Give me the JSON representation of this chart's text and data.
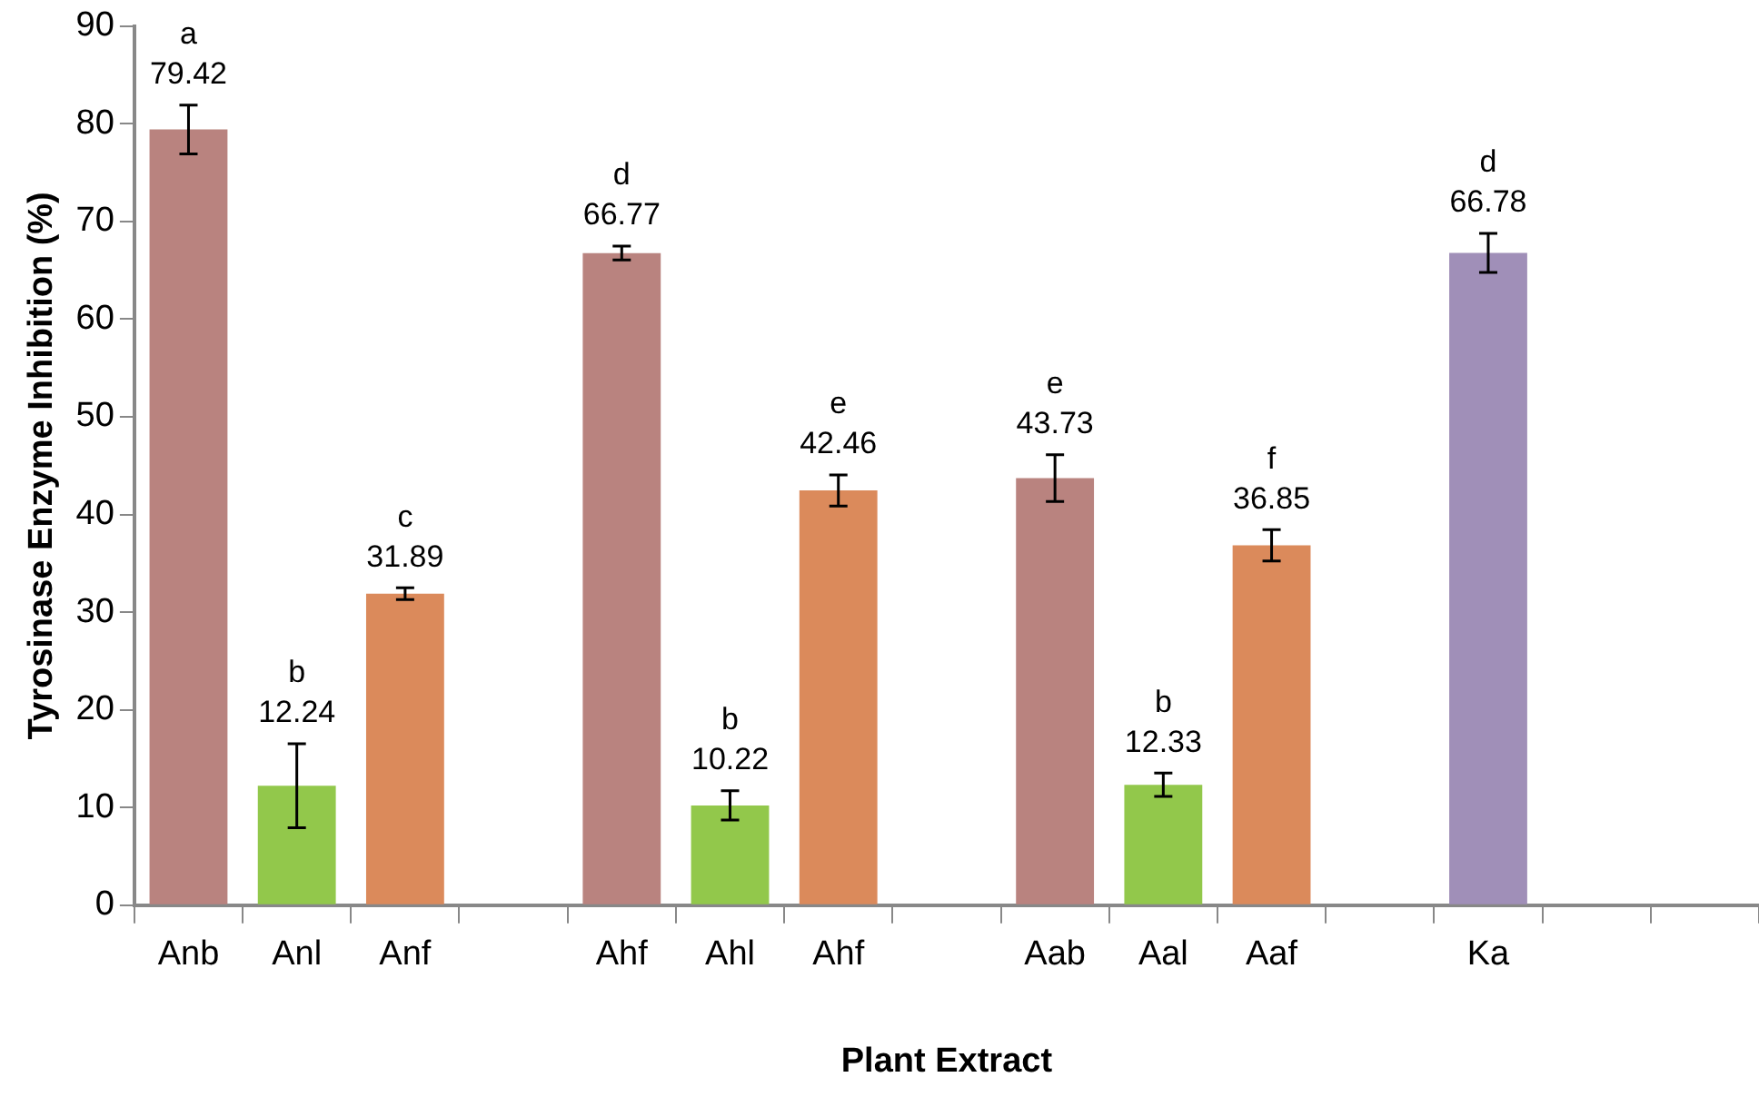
{
  "chart_data": {
    "type": "bar",
    "xlabel": "Plant Extract",
    "ylabel": "Tyrosinase Enzyme Inhibition (%)",
    "categories": [
      "Anb",
      "Anl",
      "Anf",
      null,
      "Ahf",
      "Ahl",
      "Ahf",
      null,
      "Aab",
      "Aal",
      "Aaf",
      null,
      "Ka",
      null,
      null
    ],
    "values": [
      79.42,
      12.24,
      31.89,
      null,
      66.77,
      10.22,
      42.46,
      null,
      43.73,
      12.33,
      36.85,
      null,
      66.78,
      null,
      null
    ],
    "colors": [
      "#b9837f",
      "#92c84b",
      "#db8a5b",
      null,
      "#b9837f",
      "#92c84b",
      "#db8a5b",
      null,
      "#b9837f",
      "#92c84b",
      "#db8a5b",
      null,
      "#a08fb8",
      null,
      null
    ],
    "errors": [
      2.5,
      4.3,
      0.6,
      null,
      0.7,
      1.5,
      1.6,
      null,
      2.4,
      1.2,
      1.6,
      null,
      2.0,
      null,
      null
    ],
    "value_labels": [
      "a\n79.42",
      "b\n12.24",
      "c\n31.89",
      null,
      "d\n66.77",
      "b\n10.22",
      "e\n42.46",
      null,
      "e\n43.73",
      "b\n12.33",
      "f\n36.85",
      null,
      "d\n66.78",
      null,
      null
    ],
    "ylim": [
      0,
      90
    ],
    "yticks": [
      0,
      10,
      20,
      30,
      40,
      50,
      60,
      70,
      80,
      90
    ],
    "grid": false,
    "legend": false
  }
}
